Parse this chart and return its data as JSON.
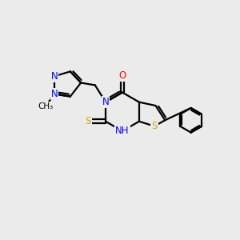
{
  "bg_color": "#ebebeb",
  "bond_color": "#000000",
  "bond_width": 1.6,
  "atom_colors": {
    "N": "#0000ff",
    "O": "#ff0000",
    "S": "#ccaa00",
    "C": "#000000"
  },
  "font_size_atom": 8.5,
  "font_size_small": 7.5,
  "xlim": [
    0,
    10
  ],
  "ylim": [
    0,
    10
  ]
}
